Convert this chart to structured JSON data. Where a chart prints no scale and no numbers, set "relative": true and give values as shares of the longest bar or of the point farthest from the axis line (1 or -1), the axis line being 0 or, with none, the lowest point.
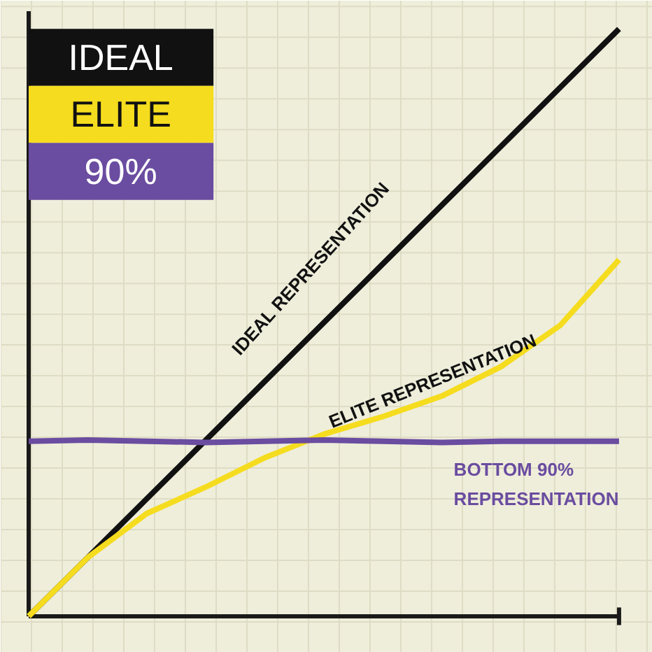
{
  "chart_data": {
    "type": "line",
    "relative": true,
    "categories": [
      null,
      null,
      null,
      null,
      null,
      null,
      null,
      null,
      null,
      null,
      null
    ],
    "series": [
      {
        "name": "IDEAL",
        "color": "#111111",
        "values": [
          0,
          0.1,
          0.2,
          0.3,
          0.4,
          0.5,
          0.6,
          0.7,
          0.8,
          0.9,
          1.0
        ]
      },
      {
        "name": "ELITE",
        "color": "#f5dc1e",
        "values": [
          0,
          0.1,
          0.175,
          0.22,
          0.27,
          0.31,
          0.34,
          0.375,
          0.425,
          0.495,
          0.607
        ]
      },
      {
        "name": "90%",
        "color": "#6a4ca0",
        "values": [
          0.298,
          0.3,
          0.298,
          0.296,
          0.298,
          0.3,
          0.298,
          0.296,
          0.298,
          0.298,
          0.298
        ]
      }
    ],
    "annotations": [
      "IDEAL REPRESENTATION",
      "ELITE REPRESENTATION",
      "BOTTOM 90%\nREPRESENTATION"
    ],
    "legend": "top left",
    "marker": "none",
    "line_style": "solid"
  }
}
